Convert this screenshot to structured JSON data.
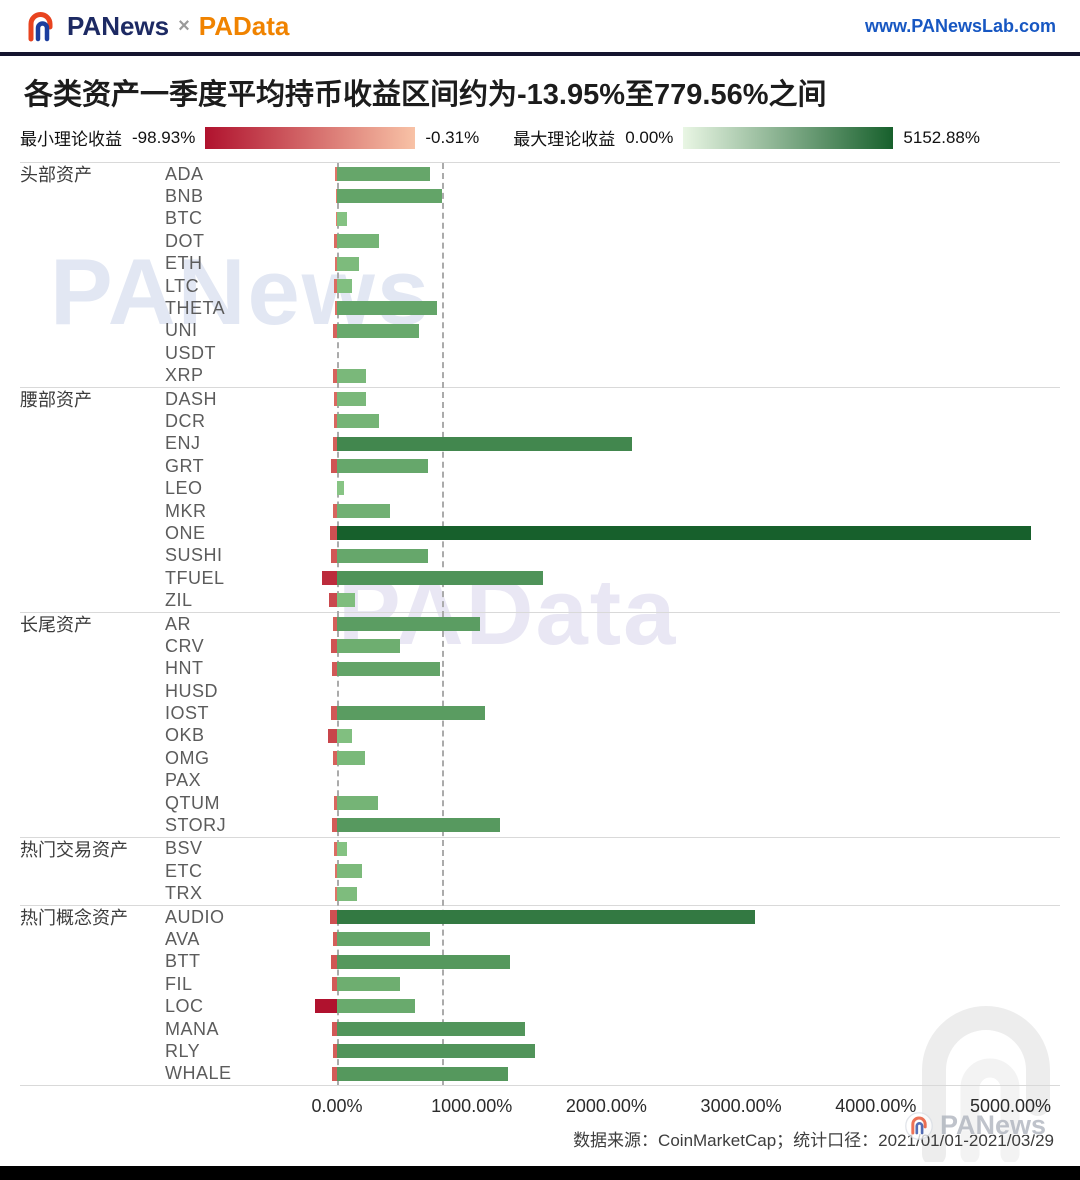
{
  "header": {
    "brand_primary": "PANews",
    "brand_separator": "×",
    "brand_secondary": "PAData",
    "website": "www.PANewsLab.com"
  },
  "title": "各类资产一季度平均持币收益区间约为-13.95%至779.56%之间",
  "legend": {
    "min_label": "最小理论收益",
    "min_start": "-98.93%",
    "min_end": "-0.31%",
    "max_label": "最大理论收益",
    "max_start": "0.00%",
    "max_end": "5152.88%"
  },
  "colors": {
    "red_dark": "#b0122e",
    "red_light": "#f8c2a6",
    "bar_red_light": "#f29d7e",
    "green_light": "#e9f6e4",
    "green_dark": "#17602c",
    "bar_green_light": "#93cf8e",
    "accent_blue": "#1757c2",
    "accent_orange": "#f08300"
  },
  "chart_data": {
    "type": "bar",
    "orientation": "horizontal",
    "title": "各类资产一季度平均持币收益区间约为-13.95%至779.56%之间",
    "x_ticks": [
      "0.00%",
      "1000.00%",
      "2000.00%",
      "3000.00%",
      "4000.00%",
      "5000.00%"
    ],
    "x_range_pct": [
      0,
      5000
    ],
    "avg_line_pct": 779.56,
    "max_value": 5152.88,
    "min_value": -98.93,
    "avg_range_note": "-13.95% 至 779.56%",
    "groups": [
      {
        "label": "头部资产",
        "assets": [
          {
            "name": "ADA",
            "max": 690,
            "min": -8
          },
          {
            "name": "BNB",
            "max": 780,
            "min": -6
          },
          {
            "name": "BTC",
            "max": 75,
            "min": -5
          },
          {
            "name": "DOT",
            "max": 310,
            "min": -13
          },
          {
            "name": "ETH",
            "max": 165,
            "min": -10
          },
          {
            "name": "LTC",
            "max": 110,
            "min": -12
          },
          {
            "name": "THETA",
            "max": 742,
            "min": -10
          },
          {
            "name": "UNI",
            "max": 610,
            "min": -18
          },
          {
            "name": "USDT",
            "max": 0,
            "min": -0.31
          },
          {
            "name": "XRP",
            "max": 215,
            "min": -18
          }
        ]
      },
      {
        "label": "腰部资产",
        "assets": [
          {
            "name": "DASH",
            "max": 215,
            "min": -14
          },
          {
            "name": "DCR",
            "max": 310,
            "min": -15
          },
          {
            "name": "ENJ",
            "max": 2190,
            "min": -20
          },
          {
            "name": "GRT",
            "max": 675,
            "min": -27
          },
          {
            "name": "LEO",
            "max": 50,
            "min": -4
          },
          {
            "name": "MKR",
            "max": 395,
            "min": -16
          },
          {
            "name": "ONE",
            "max": 5152.88,
            "min": -30
          },
          {
            "name": "SUSHI",
            "max": 675,
            "min": -25
          },
          {
            "name": "TFUEL",
            "max": 1530,
            "min": -67
          },
          {
            "name": "ZIL",
            "max": 133,
            "min": -36
          }
        ]
      },
      {
        "label": "长尾资产",
        "assets": [
          {
            "name": "AR",
            "max": 1060,
            "min": -20
          },
          {
            "name": "CRV",
            "max": 468,
            "min": -28
          },
          {
            "name": "HNT",
            "max": 765,
            "min": -24
          },
          {
            "name": "HUSD",
            "max": 0,
            "min": -0.5
          },
          {
            "name": "IOST",
            "max": 1100,
            "min": -25
          },
          {
            "name": "OKB",
            "max": 110,
            "min": -40
          },
          {
            "name": "OMG",
            "max": 208,
            "min": -18
          },
          {
            "name": "PAX",
            "max": 0,
            "min": -0.5
          },
          {
            "name": "QTUM",
            "max": 304,
            "min": -15
          },
          {
            "name": "STORJ",
            "max": 1210,
            "min": -22
          }
        ]
      },
      {
        "label": "热门交易资产",
        "assets": [
          {
            "name": "BSV",
            "max": 75,
            "min": -12
          },
          {
            "name": "ETC",
            "max": 185,
            "min": -10
          },
          {
            "name": "TRX",
            "max": 148,
            "min": -8
          }
        ]
      },
      {
        "label": "热门概念资产",
        "assets": [
          {
            "name": "AUDIO",
            "max": 3103,
            "min": -30
          },
          {
            "name": "AVA",
            "max": 690,
            "min": -20
          },
          {
            "name": "BTT",
            "max": 1285,
            "min": -26
          },
          {
            "name": "FIL",
            "max": 468,
            "min": -22
          },
          {
            "name": "LOC",
            "max": 580,
            "min": -98.93
          },
          {
            "name": "MANA",
            "max": 1395,
            "min": -24
          },
          {
            "name": "RLY",
            "max": 1470,
            "min": -20
          },
          {
            "name": "WHALE",
            "max": 1270,
            "min": -22
          }
        ]
      }
    ]
  },
  "footer": {
    "source": "数据来源：CoinMarketCap；统计口径：2021/01/01-2021/03/29",
    "stamp": "PANews"
  },
  "watermarks": {
    "top": "PANews",
    "middle": "PAData"
  }
}
